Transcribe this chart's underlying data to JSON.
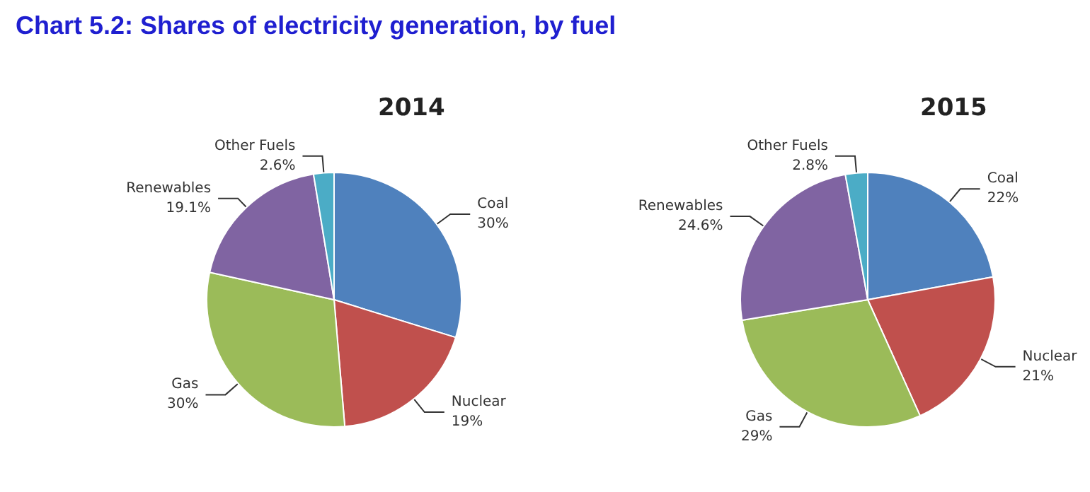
{
  "chart_data": [
    {
      "type": "pie",
      "title": "Chart 5.2: Shares of electricity generation, by fuel",
      "subtitle": "2014",
      "categories": [
        "Coal",
        "Nuclear",
        "Gas",
        "Renewables",
        "Other Fuels"
      ],
      "values": [
        30,
        19,
        30,
        19.1,
        2.6
      ],
      "value_labels": [
        "30%",
        "19%",
        "30%",
        "19.1%",
        "2.6%"
      ],
      "colors": [
        "#4f81bd",
        "#c0504d",
        "#9bbb59",
        "#8064a2",
        "#4bacc6"
      ]
    },
    {
      "type": "pie",
      "title": "2015",
      "categories": [
        "Coal",
        "Nuclear",
        "Gas",
        "Renewables",
        "Other Fuels"
      ],
      "values": [
        22,
        21,
        29,
        24.6,
        2.8
      ],
      "value_labels": [
        "22%",
        "21%",
        "29%",
        "24.6%",
        "2.8%"
      ],
      "colors": [
        "#4f81bd",
        "#c0504d",
        "#9bbb59",
        "#8064a2",
        "#4bacc6"
      ]
    }
  ]
}
